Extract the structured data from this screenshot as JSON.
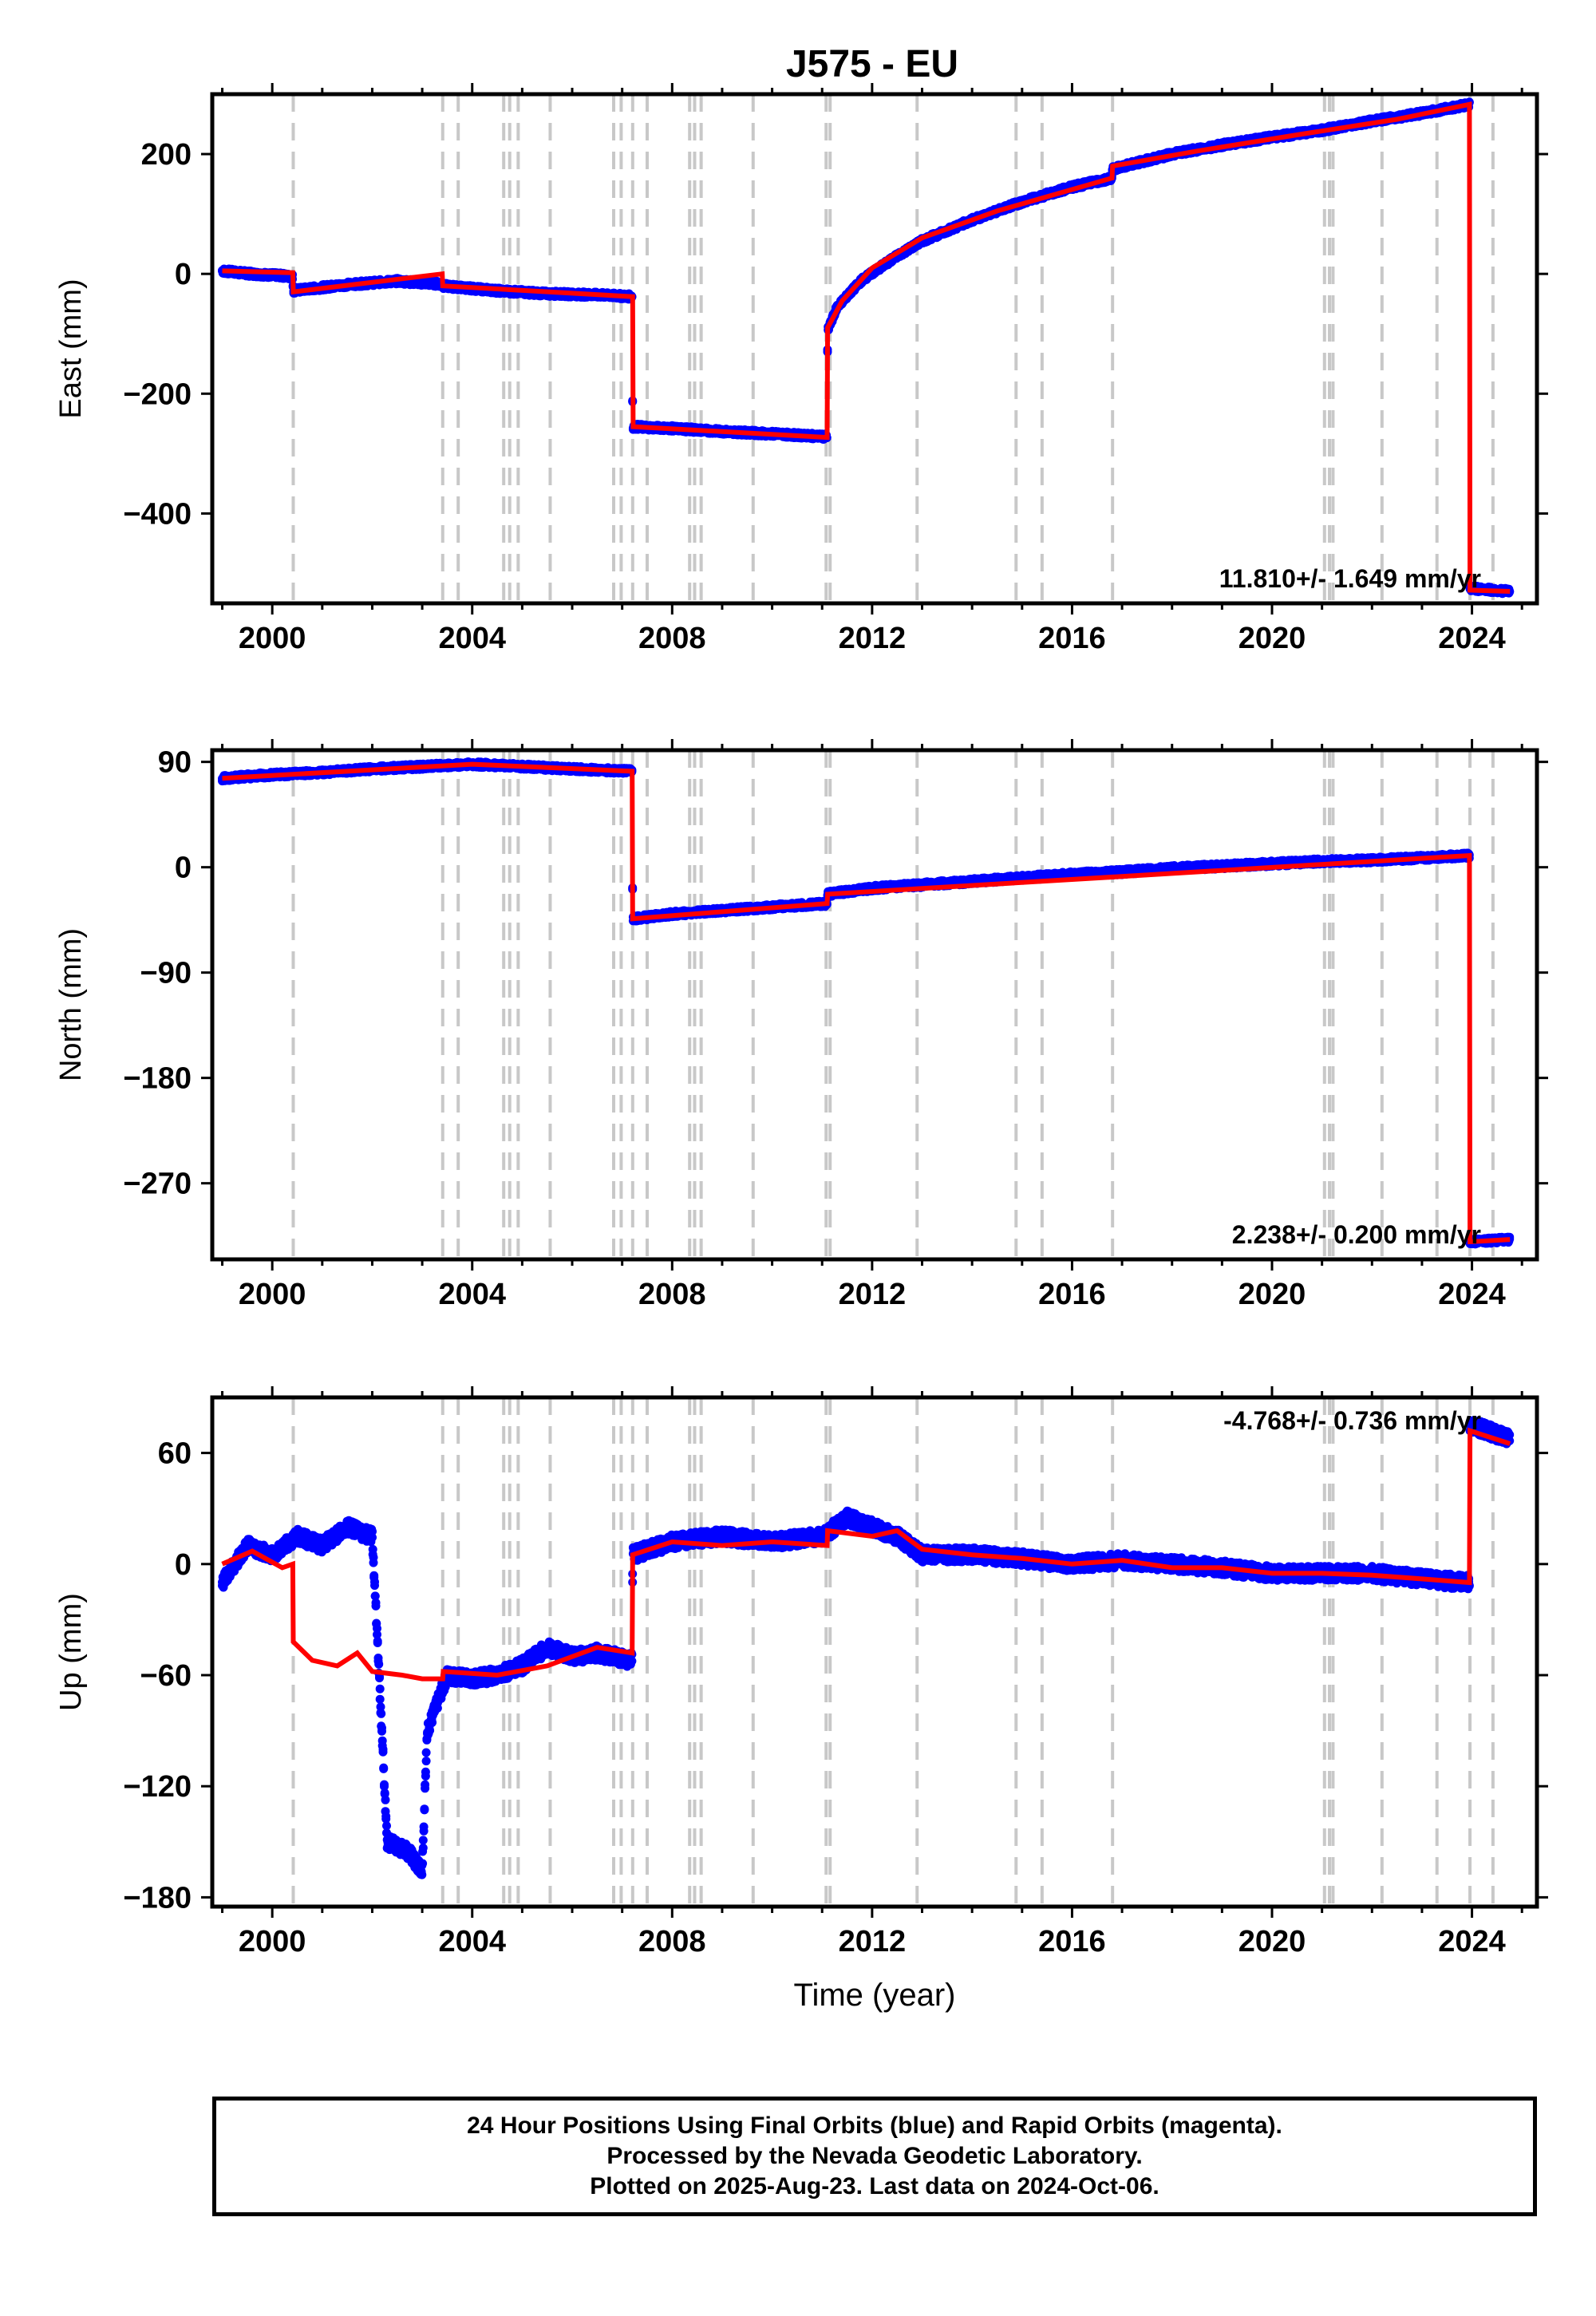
{
  "chart_data": [
    {
      "type": "scatter",
      "title": "J575 - EU",
      "xlabel": "",
      "ylabel": "East (mm)",
      "xlim": [
        1998.8,
        2025.3
      ],
      "ylim": [
        -550,
        300
      ],
      "xticks": [
        2000,
        2004,
        2008,
        2012,
        2016,
        2020,
        2024
      ],
      "yticks": [
        -400,
        -200,
        0,
        200
      ],
      "annotation": "11.810+/- 1.649 mm/yr",
      "colors": {
        "final_orbits": "#0000ff",
        "model": "#ff0000"
      },
      "series": [
        {
          "values": [
            [
              1999.0,
              5
            ],
            [
              1999.6,
              0
            ],
            [
              2000.2,
              -3
            ],
            [
              2000.41,
              -5
            ],
            [
              2000.42,
              -28
            ],
            [
              2001.5,
              -18
            ],
            [
              2002.5,
              -12
            ],
            [
              2003.4,
              -17
            ],
            [
              2003.41,
              -20
            ],
            [
              2004.5,
              -28
            ],
            [
              2005.5,
              -33
            ],
            [
              2006.5,
              -35
            ],
            [
              2007.2,
              -38
            ],
            [
              2007.21,
              -255
            ],
            [
              2008.0,
              -258
            ],
            [
              2009.0,
              -263
            ],
            [
              2010.0,
              -267
            ],
            [
              2011.1,
              -272
            ],
            [
              2011.11,
              -95
            ],
            [
              2011.3,
              -55
            ],
            [
              2011.8,
              -10
            ],
            [
              2012.5,
              30
            ],
            [
              2013.0,
              55
            ],
            [
              2014.0,
              90
            ],
            [
              2015.0,
              120
            ],
            [
              2016.0,
              145
            ],
            [
              2016.8,
              160
            ],
            [
              2016.81,
              175
            ],
            [
              2018.0,
              200
            ],
            [
              2019.0,
              215
            ],
            [
              2020.0,
              228
            ],
            [
              2021.0,
              240
            ],
            [
              2022.0,
              255
            ],
            [
              2023.0,
              268
            ],
            [
              2023.95,
              283
            ],
            [
              2023.96,
              -525
            ],
            [
              2024.76,
              -530
            ]
          ]
        },
        {
          "name": "model",
          "values": [
            [
              1999.0,
              5
            ],
            [
              2000.41,
              2
            ],
            [
              2000.42,
              -30
            ],
            [
              2003.4,
              0
            ],
            [
              2003.41,
              -20
            ],
            [
              2007.21,
              -38
            ],
            [
              2007.22,
              -255
            ],
            [
              2011.1,
              -273
            ],
            [
              2011.11,
              -90
            ],
            [
              2011.4,
              -45
            ],
            [
              2012.0,
              10
            ],
            [
              2013.0,
              60
            ],
            [
              2014.5,
              105
            ],
            [
              2016.8,
              160
            ],
            [
              2016.81,
              180
            ],
            [
              2018.5,
              205
            ],
            [
              2020.5,
              232
            ],
            [
              2022.5,
              258
            ],
            [
              2023.95,
              283
            ],
            [
              2023.96,
              -528
            ],
            [
              2024.76,
              -530
            ]
          ]
        }
      ]
    },
    {
      "type": "scatter",
      "xlabel": "",
      "ylabel": "North (mm)",
      "xlim": [
        1998.8,
        2025.3
      ],
      "ylim": [
        -335,
        100
      ],
      "xticks": [
        2000,
        2004,
        2008,
        2012,
        2016,
        2020,
        2024
      ],
      "yticks": [
        -270,
        -180,
        -90,
        0,
        90
      ],
      "annotation": "2.238+/- 0.200 mm/yr",
      "colors": {
        "final_orbits": "#0000ff",
        "model": "#ff0000"
      },
      "series": [
        {
          "values": [
            [
              1999.0,
              76
            ],
            [
              2000.0,
              79
            ],
            [
              2001.0,
              81
            ],
            [
              2002.0,
              84
            ],
            [
              2003.0,
              86
            ],
            [
              2004.0,
              88
            ],
            [
              2005.0,
              86
            ],
            [
              2006.0,
              84
            ],
            [
              2007.2,
              82
            ],
            [
              2007.21,
              -44
            ],
            [
              2008.0,
              -40
            ],
            [
              2009.0,
              -37
            ],
            [
              2010.0,
              -34
            ],
            [
              2011.1,
              -31
            ],
            [
              2011.11,
              -23
            ],
            [
              2012.0,
              -18
            ],
            [
              2013.0,
              -15
            ],
            [
              2014.0,
              -12
            ],
            [
              2015.0,
              -9
            ],
            [
              2016.0,
              -6
            ],
            [
              2017.0,
              -4
            ],
            [
              2018.0,
              -1
            ],
            [
              2019.0,
              1
            ],
            [
              2020.0,
              3
            ],
            [
              2021.0,
              5
            ],
            [
              2022.0,
              6
            ],
            [
              2023.0,
              8
            ],
            [
              2023.95,
              10
            ],
            [
              2023.96,
              -320
            ],
            [
              2024.76,
              -318
            ]
          ]
        },
        {
          "name": "model",
          "values": [
            [
              1999.0,
              76
            ],
            [
              2004.0,
              88
            ],
            [
              2007.2,
              82
            ],
            [
              2007.21,
              -44
            ],
            [
              2011.1,
              -31
            ],
            [
              2011.11,
              -23
            ],
            [
              2023.95,
              10
            ],
            [
              2023.96,
              -320
            ],
            [
              2024.76,
              -318
            ]
          ]
        }
      ]
    },
    {
      "type": "scatter",
      "xlabel": "Time (year)",
      "ylabel": "Up (mm)",
      "xlim": [
        1998.8,
        2025.3
      ],
      "ylim": [
        -185,
        90
      ],
      "xticks": [
        2000,
        2004,
        2008,
        2012,
        2016,
        2020,
        2024
      ],
      "yticks": [
        -180,
        -120,
        -60,
        0,
        60
      ],
      "annotation": "-4.768+/- 0.736 mm/yr",
      "colors": {
        "final_orbits": "#0000ff",
        "model": "#ff0000"
      },
      "series": [
        {
          "values": [
            [
              1999.0,
              -10
            ],
            [
              1999.5,
              10
            ],
            [
              2000.0,
              5
            ],
            [
              2000.5,
              15
            ],
            [
              2001.0,
              10
            ],
            [
              2001.5,
              20
            ],
            [
              2002.0,
              15
            ],
            [
              2002.3,
              -150
            ],
            [
              2002.7,
              -155
            ],
            [
              2003.0,
              -165
            ],
            [
              2003.1,
              -90
            ],
            [
              2003.5,
              -60
            ],
            [
              2004.0,
              -62
            ],
            [
              2004.5,
              -60
            ],
            [
              2005.0,
              -55
            ],
            [
              2005.5,
              -45
            ],
            [
              2006.0,
              -50
            ],
            [
              2006.5,
              -48
            ],
            [
              2007.2,
              -52
            ],
            [
              2007.21,
              5
            ],
            [
              2008.0,
              12
            ],
            [
              2009.0,
              15
            ],
            [
              2010.0,
              12
            ],
            [
              2011.0,
              15
            ],
            [
              2011.5,
              25
            ],
            [
              2012.0,
              20
            ],
            [
              2012.5,
              15
            ],
            [
              2013.0,
              5
            ],
            [
              2014.0,
              5
            ],
            [
              2015.0,
              3
            ],
            [
              2016.0,
              0
            ],
            [
              2017.0,
              2
            ],
            [
              2018.0,
              0
            ],
            [
              2019.0,
              -2
            ],
            [
              2020.0,
              -5
            ],
            [
              2021.0,
              -5
            ],
            [
              2022.0,
              -5
            ],
            [
              2023.0,
              -8
            ],
            [
              2023.95,
              -10
            ],
            [
              2023.96,
              75
            ],
            [
              2024.76,
              68
            ]
          ]
        },
        {
          "name": "model",
          "values": [
            [
              1999.0,
              0
            ],
            [
              1999.6,
              7
            ],
            [
              2000.2,
              -2
            ],
            [
              2000.41,
              0
            ],
            [
              2000.42,
              -42
            ],
            [
              2000.8,
              -52
            ],
            [
              2001.3,
              -55
            ],
            [
              2001.7,
              -48
            ],
            [
              2002.0,
              -58
            ],
            [
              2002.6,
              -60
            ],
            [
              2003.0,
              -62
            ],
            [
              2003.41,
              -62
            ],
            [
              2003.42,
              -58
            ],
            [
              2004.5,
              -60
            ],
            [
              2005.5,
              -55
            ],
            [
              2006.5,
              -45
            ],
            [
              2007.2,
              -48
            ],
            [
              2007.21,
              5
            ],
            [
              2008.0,
              12
            ],
            [
              2009.0,
              10
            ],
            [
              2010.0,
              12
            ],
            [
              2011.1,
              10
            ],
            [
              2011.11,
              18
            ],
            [
              2012.0,
              15
            ],
            [
              2012.5,
              18
            ],
            [
              2013.0,
              8
            ],
            [
              2014.0,
              5
            ],
            [
              2015.0,
              3
            ],
            [
              2016.0,
              0
            ],
            [
              2017.0,
              2
            ],
            [
              2018.0,
              -2
            ],
            [
              2019.0,
              -2
            ],
            [
              2020.0,
              -5
            ],
            [
              2021.0,
              -5
            ],
            [
              2022.0,
              -6
            ],
            [
              2023.0,
              -8
            ],
            [
              2023.95,
              -10
            ],
            [
              2023.96,
              72
            ],
            [
              2024.76,
              65
            ]
          ]
        }
      ]
    }
  ],
  "vertical_lines_years": [
    2000.42,
    2003.41,
    2003.72,
    2004.63,
    2004.75,
    2004.92,
    2005.56,
    2006.83,
    2006.98,
    2007.21,
    2007.5,
    2008.35,
    2008.45,
    2008.58,
    2009.62,
    2011.08,
    2011.16,
    2012.9,
    2014.88,
    2015.4,
    2016.81,
    2021.05,
    2021.15,
    2021.22,
    2022.2,
    2023.3,
    2023.96,
    2024.42
  ],
  "footer": {
    "line1": "24 Hour Positions Using Final Orbits (blue) and Rapid Orbits (magenta).",
    "line2": "Processed by the Nevada Geodetic Laboratory.",
    "line3": "Plotted on 2025-Aug-23. Last data on 2024-Oct-06."
  }
}
